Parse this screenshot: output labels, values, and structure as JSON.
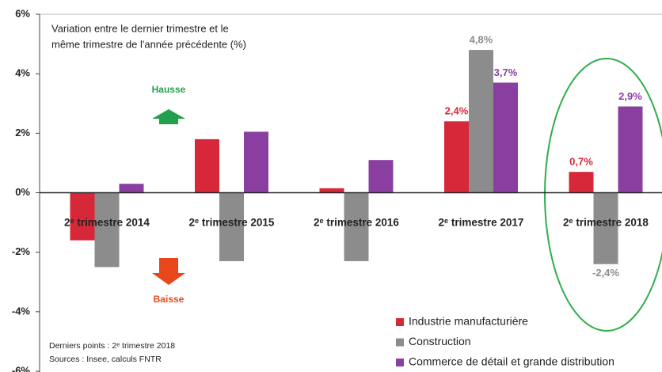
{
  "chart_data": {
    "type": "bar",
    "title_lines": [
      "Variation entre le dernier trimestre et le",
      "même trimestre de l'année précédente (%)"
    ],
    "annotations": [
      "Hausse",
      "Baisse"
    ],
    "notes": [
      "Derniers points : 2ᵉ trimestre 2018",
      "Sources : Insee, calculs FNTR"
    ],
    "categories": [
      "2ᵉ trimestre 2014",
      "2ᵉ trimestre 2015",
      "2ᵉ trimestre 2016",
      "2ᵉ trimestre 2017",
      "2ᵉ trimestre 2018"
    ],
    "series": [
      {
        "name": "Industrie manufacturière",
        "color": "#d62839",
        "values": [
          -1.6,
          1.8,
          0.15,
          2.4,
          0.7
        ],
        "value_labels": [
          null,
          null,
          null,
          "2,4%",
          "0,7%"
        ]
      },
      {
        "name": "Construction",
        "color": "#8c8c8c",
        "values": [
          -2.5,
          -2.3,
          -2.3,
          4.8,
          -2.4
        ],
        "value_labels": [
          null,
          null,
          null,
          "4,8%",
          "-2,4%"
        ]
      },
      {
        "name": "Commerce de détail et grande distribution",
        "color": "#8a3fa0",
        "values": [
          0.3,
          2.05,
          1.1,
          3.7,
          2.9
        ],
        "value_labels": [
          null,
          null,
          null,
          "3,7%",
          "2,9%"
        ]
      }
    ],
    "ylim": [
      -6,
      6
    ],
    "yticks": [
      {
        "value": 6,
        "label": "6%"
      },
      {
        "value": 4,
        "label": "4%"
      },
      {
        "value": 2,
        "label": "2%"
      },
      {
        "value": 0,
        "label": "0%"
      },
      {
        "value": -2,
        "label": "-2%"
      },
      {
        "value": -4,
        "label": "-4%"
      },
      {
        "value": -6,
        "label": "-6%"
      }
    ],
    "legend": "bottom-right"
  }
}
